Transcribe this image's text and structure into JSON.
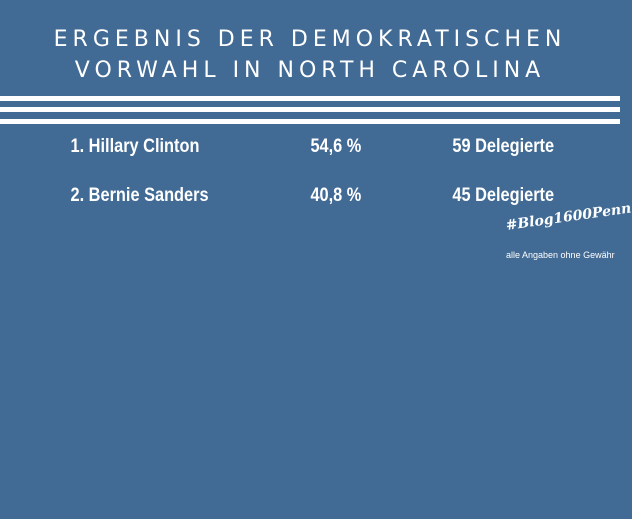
{
  "title": {
    "line1": "Ergebnis der demokratischen",
    "line2": "Vorwahl in North Carolina"
  },
  "results": [
    {
      "rank_name": "1.  Hillary Clinton",
      "percent": "54,6 %",
      "delegates": "59 Delegierte"
    },
    {
      "rank_name": "2.  Bernie Sanders",
      "percent": "40,8 %",
      "delegates": "45 Delegierte"
    }
  ],
  "hashtag": "#Blog1600Penn",
  "disclaimer": "alle Angaben ohne Gewähr",
  "colors": {
    "background": "#416a95",
    "text": "#ffffff",
    "stripes": "#ffffff"
  }
}
